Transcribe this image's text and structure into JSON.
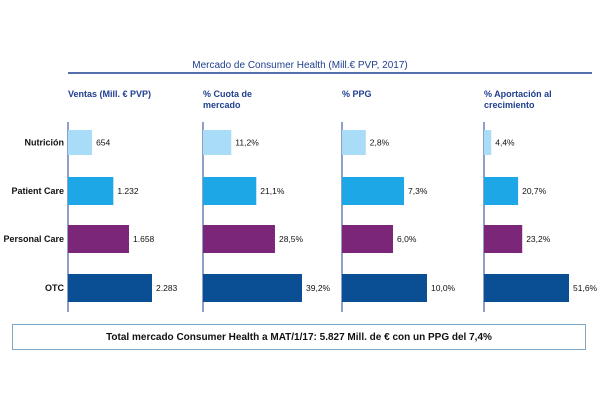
{
  "chart_data": {
    "type": "bar",
    "title": "Mercado de Consumer Health (Mill.€ PVP, 2017)",
    "categories": [
      "Nutrición",
      "Patient Care",
      "Personal Care",
      "OTC"
    ],
    "colors": [
      "#a9dcf6",
      "#1ea7e6",
      "#7b2679",
      "#0a4f93"
    ],
    "panels": [
      {
        "header": [
          "Ventas (Mill. € PVP)"
        ],
        "values": [
          654,
          1232,
          1658,
          2283
        ],
        "labels": [
          "654",
          "1.232",
          "1.658",
          "2.283"
        ],
        "max": 2283
      },
      {
        "header": [
          "% Cuota de",
          "mercado"
        ],
        "values": [
          11.2,
          21.1,
          28.5,
          39.2
        ],
        "labels": [
          "11,2%",
          "21,1%",
          "28,5%",
          "39,2%"
        ],
        "max": 39.2
      },
      {
        "header": [
          "% PPG"
        ],
        "values": [
          2.8,
          7.3,
          6.0,
          10.0
        ],
        "labels": [
          "2,8%",
          "7,3%",
          "6,0%",
          "10,0%"
        ],
        "max": 10.0
      },
      {
        "header": [
          "% Aportación al",
          "crecimiento"
        ],
        "values": [
          4.4,
          20.7,
          23.2,
          51.6
        ],
        "labels": [
          "4,4%",
          "20,7%",
          "23,2%",
          "51,6%"
        ],
        "max": 51.6
      }
    ]
  },
  "footer_text": "Total mercado Consumer Health a MAT/1/17: 5.827 Mill. de € con un PPG del 7,4%"
}
